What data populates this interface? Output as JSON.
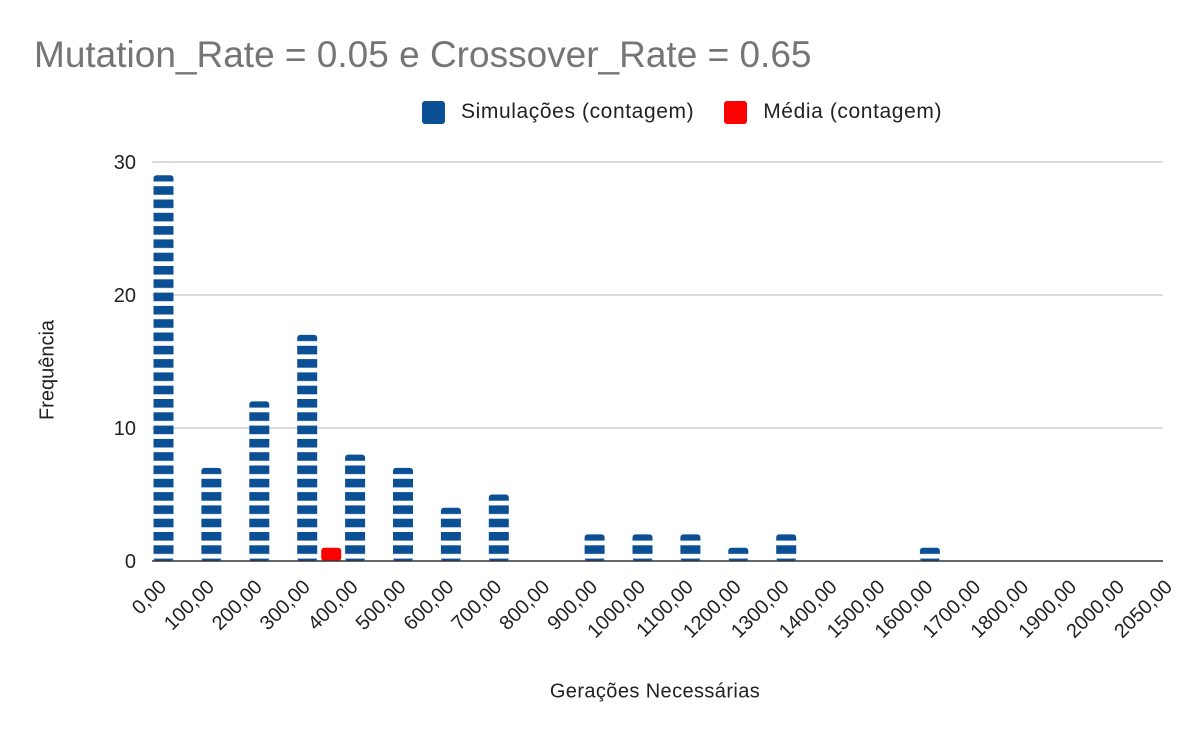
{
  "chart_data": {
    "type": "bar",
    "title": "Mutation_Rate = 0.05 e Crossover_Rate = 0.65",
    "xlabel": "Gerações Necessárias",
    "ylabel": "Frequência",
    "ylim": [
      0,
      30
    ],
    "yticks": [
      "0",
      "10",
      "20",
      "30"
    ],
    "grid": true,
    "legend_position": "top",
    "categories": [
      "0,00",
      "100,00",
      "200,00",
      "300,00",
      "400,00",
      "500,00",
      "600,00",
      "700,00",
      "800,00",
      "900,00",
      "1000,00",
      "1100,00",
      "1200,00",
      "1300,00",
      "1400,00",
      "1500,00",
      "1600,00",
      "1700,00",
      "1800,00",
      "1900,00",
      "2000,00",
      "2050,00"
    ],
    "series": [
      {
        "name": "Simulações (contagem)",
        "color": "#0b4f94",
        "values": [
          29,
          7,
          12,
          17,
          8,
          7,
          4,
          5,
          0,
          2,
          2,
          2,
          1,
          2,
          0,
          0,
          1,
          0,
          0,
          0,
          0,
          0
        ]
      },
      {
        "name": "Média  (contagem)",
        "color": "#ff0000",
        "values": [
          0,
          0,
          0,
          1,
          0,
          0,
          0,
          0,
          0,
          0,
          0,
          0,
          0,
          0,
          0,
          0,
          0,
          0,
          0,
          0,
          0,
          0
        ]
      }
    ]
  }
}
